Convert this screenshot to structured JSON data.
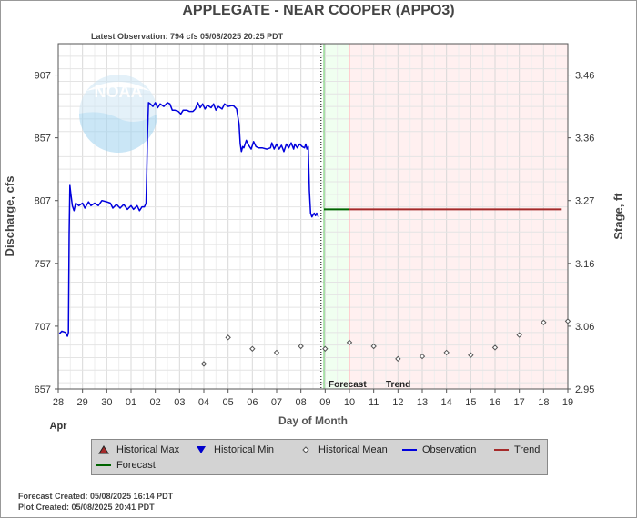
{
  "title": "APPLEGATE - NEAR COOPER  (APPO3)",
  "latest_observation": "Latest Observation: 794 cfs 05/08/2025 20:25 PDT",
  "forecast_created": "Forecast Created: 05/08/2025 16:14 PDT",
  "plot_created": "Plot Created: 05/08/2025 20:41 PDT",
  "watermark": "NOAA",
  "colors": {
    "observation": "#0000dd",
    "forecast": "#006400",
    "trend": "#a52a2a",
    "forecast_bg": "#f0fff0",
    "trend_bg": "#fff0f0",
    "grid": "#d9d9d9"
  },
  "legend": [
    {
      "label": "Historical Max",
      "symbol": "triangle-up-icon",
      "color": "#a52a2a"
    },
    {
      "label": "Historical Min",
      "symbol": "triangle-down-icon",
      "color": "#0000cc"
    },
    {
      "label": "Historical Mean",
      "symbol": "diamond-icon",
      "color": "#555555"
    },
    {
      "label": "Observation",
      "symbol": "line-icon",
      "color": "#0000dd"
    },
    {
      "label": "Trend",
      "symbol": "line-icon",
      "color": "#a52a2a"
    },
    {
      "label": "Forecast",
      "symbol": "line-icon",
      "color": "#006400"
    }
  ],
  "chart_data": {
    "type": "line",
    "xlabel": "Day of Month",
    "ylabel_left": "Discharge, cfs",
    "ylabel_right": "Stage, ft",
    "x_month_label": "Apr",
    "x_ticks": [
      "28",
      "29",
      "30",
      "01",
      "02",
      "03",
      "04",
      "05",
      "06",
      "07",
      "08",
      "09",
      "10",
      "11",
      "12",
      "13",
      "14",
      "15",
      "16",
      "17",
      "18",
      "19"
    ],
    "x_range_days": [
      0,
      21
    ],
    "y_left_range": [
      657,
      932
    ],
    "y_left_ticks": [
      657,
      707,
      757,
      807,
      857,
      907
    ],
    "y_right_ticks": [
      "2.95",
      "3.06",
      "3.16",
      "3.27",
      "3.36",
      "3.46"
    ],
    "grid": true,
    "forecast_region_days": [
      10.95,
      12.0
    ],
    "trend_region_days": [
      12.0,
      21.0
    ],
    "region_labels": {
      "forecast": "Forecast",
      "trend": "Trend"
    },
    "series": [
      {
        "name": "Observation",
        "points": [
          [
            0.05,
            701
          ],
          [
            0.15,
            703
          ],
          [
            0.3,
            702
          ],
          [
            0.38,
            699
          ],
          [
            0.42,
            702
          ],
          [
            0.45,
            780
          ],
          [
            0.48,
            819
          ],
          [
            0.52,
            812
          ],
          [
            0.58,
            803
          ],
          [
            0.65,
            799
          ],
          [
            0.72,
            805
          ],
          [
            0.85,
            803
          ],
          [
            1.0,
            805
          ],
          [
            1.1,
            801
          ],
          [
            1.25,
            806
          ],
          [
            1.35,
            803
          ],
          [
            1.5,
            805
          ],
          [
            1.65,
            803
          ],
          [
            1.8,
            807
          ],
          [
            2.0,
            806
          ],
          [
            2.15,
            805
          ],
          [
            2.25,
            801
          ],
          [
            2.4,
            804
          ],
          [
            2.55,
            801
          ],
          [
            2.7,
            804
          ],
          [
            2.85,
            800
          ],
          [
            3.0,
            803
          ],
          [
            3.1,
            800
          ],
          [
            3.25,
            803
          ],
          [
            3.35,
            799
          ],
          [
            3.45,
            802
          ],
          [
            3.55,
            802
          ],
          [
            3.62,
            805
          ],
          [
            3.65,
            830
          ],
          [
            3.68,
            860
          ],
          [
            3.72,
            885
          ],
          [
            3.8,
            884
          ],
          [
            3.9,
            882
          ],
          [
            4.0,
            885
          ],
          [
            4.1,
            881
          ],
          [
            4.2,
            884
          ],
          [
            4.35,
            882
          ],
          [
            4.5,
            885
          ],
          [
            4.6,
            884
          ],
          [
            4.7,
            879
          ],
          [
            4.8,
            879
          ],
          [
            4.95,
            878
          ],
          [
            5.05,
            876
          ],
          [
            5.15,
            879
          ],
          [
            5.3,
            879
          ],
          [
            5.4,
            878
          ],
          [
            5.55,
            878
          ],
          [
            5.65,
            880
          ],
          [
            5.75,
            885
          ],
          [
            5.85,
            881
          ],
          [
            5.95,
            884
          ],
          [
            6.05,
            880
          ],
          [
            6.15,
            883
          ],
          [
            6.3,
            881
          ],
          [
            6.4,
            884
          ],
          [
            6.5,
            879
          ],
          [
            6.6,
            882
          ],
          [
            6.75,
            880
          ],
          [
            6.85,
            884
          ],
          [
            7.0,
            882
          ],
          [
            7.2,
            883
          ],
          [
            7.35,
            880
          ],
          [
            7.45,
            868
          ],
          [
            7.5,
            852
          ],
          [
            7.55,
            846
          ],
          [
            7.6,
            850
          ],
          [
            7.65,
            849
          ],
          [
            7.75,
            855
          ],
          [
            7.85,
            851
          ],
          [
            7.95,
            848
          ],
          [
            8.05,
            854
          ],
          [
            8.15,
            850
          ],
          [
            8.25,
            849
          ],
          [
            8.4,
            849
          ],
          [
            8.6,
            848
          ],
          [
            8.75,
            849
          ],
          [
            8.8,
            853
          ],
          [
            8.9,
            848
          ],
          [
            9.0,
            852
          ],
          [
            9.1,
            848
          ],
          [
            9.2,
            851
          ],
          [
            9.3,
            846
          ],
          [
            9.4,
            852
          ],
          [
            9.5,
            849
          ],
          [
            9.6,
            853
          ],
          [
            9.7,
            848
          ],
          [
            9.75,
            852
          ],
          [
            9.85,
            849
          ],
          [
            9.95,
            852
          ],
          [
            10.05,
            850
          ],
          [
            10.15,
            849
          ],
          [
            10.2,
            852
          ],
          [
            10.25,
            848
          ],
          [
            10.3,
            850
          ],
          [
            10.35,
            815
          ],
          [
            10.4,
            797
          ],
          [
            10.45,
            794
          ],
          [
            10.55,
            797
          ],
          [
            10.6,
            795
          ],
          [
            10.65,
            797
          ],
          [
            10.72,
            794
          ]
        ]
      },
      {
        "name": "Forecast",
        "points": [
          [
            10.95,
            800
          ],
          [
            12.0,
            800
          ]
        ]
      },
      {
        "name": "Trend",
        "points": [
          [
            12.0,
            800
          ],
          [
            20.75,
            800
          ]
        ]
      },
      {
        "name": "Historical Mean",
        "markers": [
          [
            6.0,
            677
          ],
          [
            7.0,
            698
          ],
          [
            8.0,
            689
          ],
          [
            9.0,
            686
          ],
          [
            10.0,
            691
          ],
          [
            11.0,
            689
          ],
          [
            12.0,
            694
          ],
          [
            13.0,
            691
          ],
          [
            14.0,
            681
          ],
          [
            15.0,
            683
          ],
          [
            16.0,
            686
          ],
          [
            17.0,
            684
          ],
          [
            18.0,
            690
          ],
          [
            19.0,
            700
          ],
          [
            20.0,
            710
          ],
          [
            21.0,
            711
          ]
        ]
      }
    ]
  }
}
